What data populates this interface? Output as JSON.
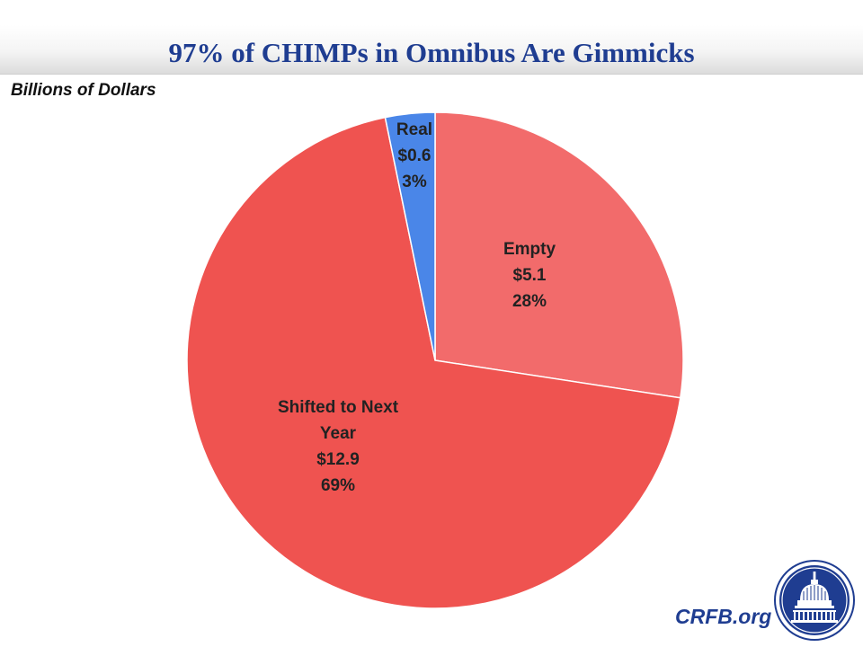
{
  "header": {
    "title": "97% of CHIMPs in Omnibus Are Gimmicks",
    "unit_label": "Billions of Dollars"
  },
  "chart_data": {
    "type": "pie",
    "title": "97% of CHIMPs in Omnibus Are Gimmicks",
    "subtitle": "Billions of Dollars",
    "start": "top (12 o'clock), clockwise",
    "slices": [
      {
        "name": "Empty",
        "value": 5.1,
        "value_label": "$5.1",
        "percent": 28,
        "percent_label": "28%",
        "color": "#f26b6b"
      },
      {
        "name": "Shifted to Next Year",
        "label_lines": [
          "Shifted to Next",
          "Year"
        ],
        "value": 12.9,
        "value_label": "$12.9",
        "percent": 69,
        "percent_label": "69%",
        "color": "#ef5350"
      },
      {
        "name": "Real",
        "value": 0.6,
        "value_label": "$0.6",
        "percent": 3,
        "percent_label": "3%",
        "color": "#4a86e8"
      }
    ]
  },
  "footer": {
    "site": "CRFB.org",
    "seal_icon": "capitol-dome-seal-icon",
    "seal_color": "#1f3d91"
  }
}
